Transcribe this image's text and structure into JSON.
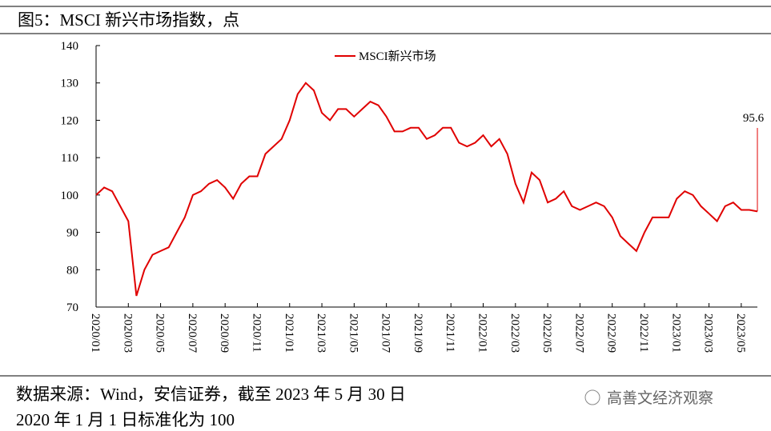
{
  "chart_data": {
    "type": "line",
    "title": "图5：MSCI 新兴市场指数，点",
    "categories": [
      "2020/01",
      null,
      null,
      null,
      "2020/03",
      null,
      null,
      null,
      "2020/05",
      null,
      null,
      null,
      "2020/07",
      null,
      null,
      null,
      "2020/09",
      null,
      null,
      null,
      "2020/11",
      null,
      null,
      null,
      "2021/01",
      null,
      null,
      null,
      "2021/03",
      null,
      null,
      null,
      "2021/05",
      null,
      null,
      null,
      "2021/07",
      null,
      null,
      null,
      "2021/09",
      null,
      null,
      null,
      "2021/11",
      null,
      null,
      null,
      "2022/01",
      null,
      null,
      null,
      "2022/03",
      null,
      null,
      null,
      "2022/05",
      null,
      null,
      null,
      "2022/07",
      null,
      null,
      null,
      "2022/09",
      null,
      null,
      null,
      "2022/11",
      null,
      null,
      null,
      "2023/01",
      null,
      null,
      null,
      "2023/03",
      null,
      null,
      null,
      "2023/05",
      null,
      null
    ],
    "series": [
      {
        "name": "MSCI新兴市场",
        "color": "#e00000",
        "values": [
          100,
          102,
          101,
          97,
          93,
          73,
          80,
          84,
          85,
          86,
          90,
          94,
          100,
          101,
          103,
          104,
          102,
          99,
          103,
          105,
          105,
          111,
          113,
          115,
          120,
          127,
          130,
          128,
          122,
          120,
          123,
          123,
          121,
          123,
          125,
          124,
          121,
          117,
          117,
          118,
          118,
          115,
          116,
          118,
          118,
          114,
          113,
          114,
          116,
          113,
          115,
          111,
          103,
          98,
          106,
          104,
          98,
          99,
          101,
          97,
          96,
          97,
          98,
          97,
          94,
          89,
          87,
          85,
          90,
          94,
          94,
          94,
          99,
          101,
          100,
          97,
          95,
          93,
          97,
          98,
          96,
          96,
          95.6
        ]
      }
    ],
    "ylim": [
      70,
      140
    ],
    "yticks": [
      70,
      80,
      90,
      100,
      110,
      120,
      130,
      140
    ],
    "grid": false,
    "legend": "top"
  },
  "footer": {
    "source": "数据来源：Wind，安信证券，截至 2023 年 5 月 30 日",
    "note": "2020 年 1 月 1 日标准化为 100",
    "watermark": "高善文经济观察"
  }
}
